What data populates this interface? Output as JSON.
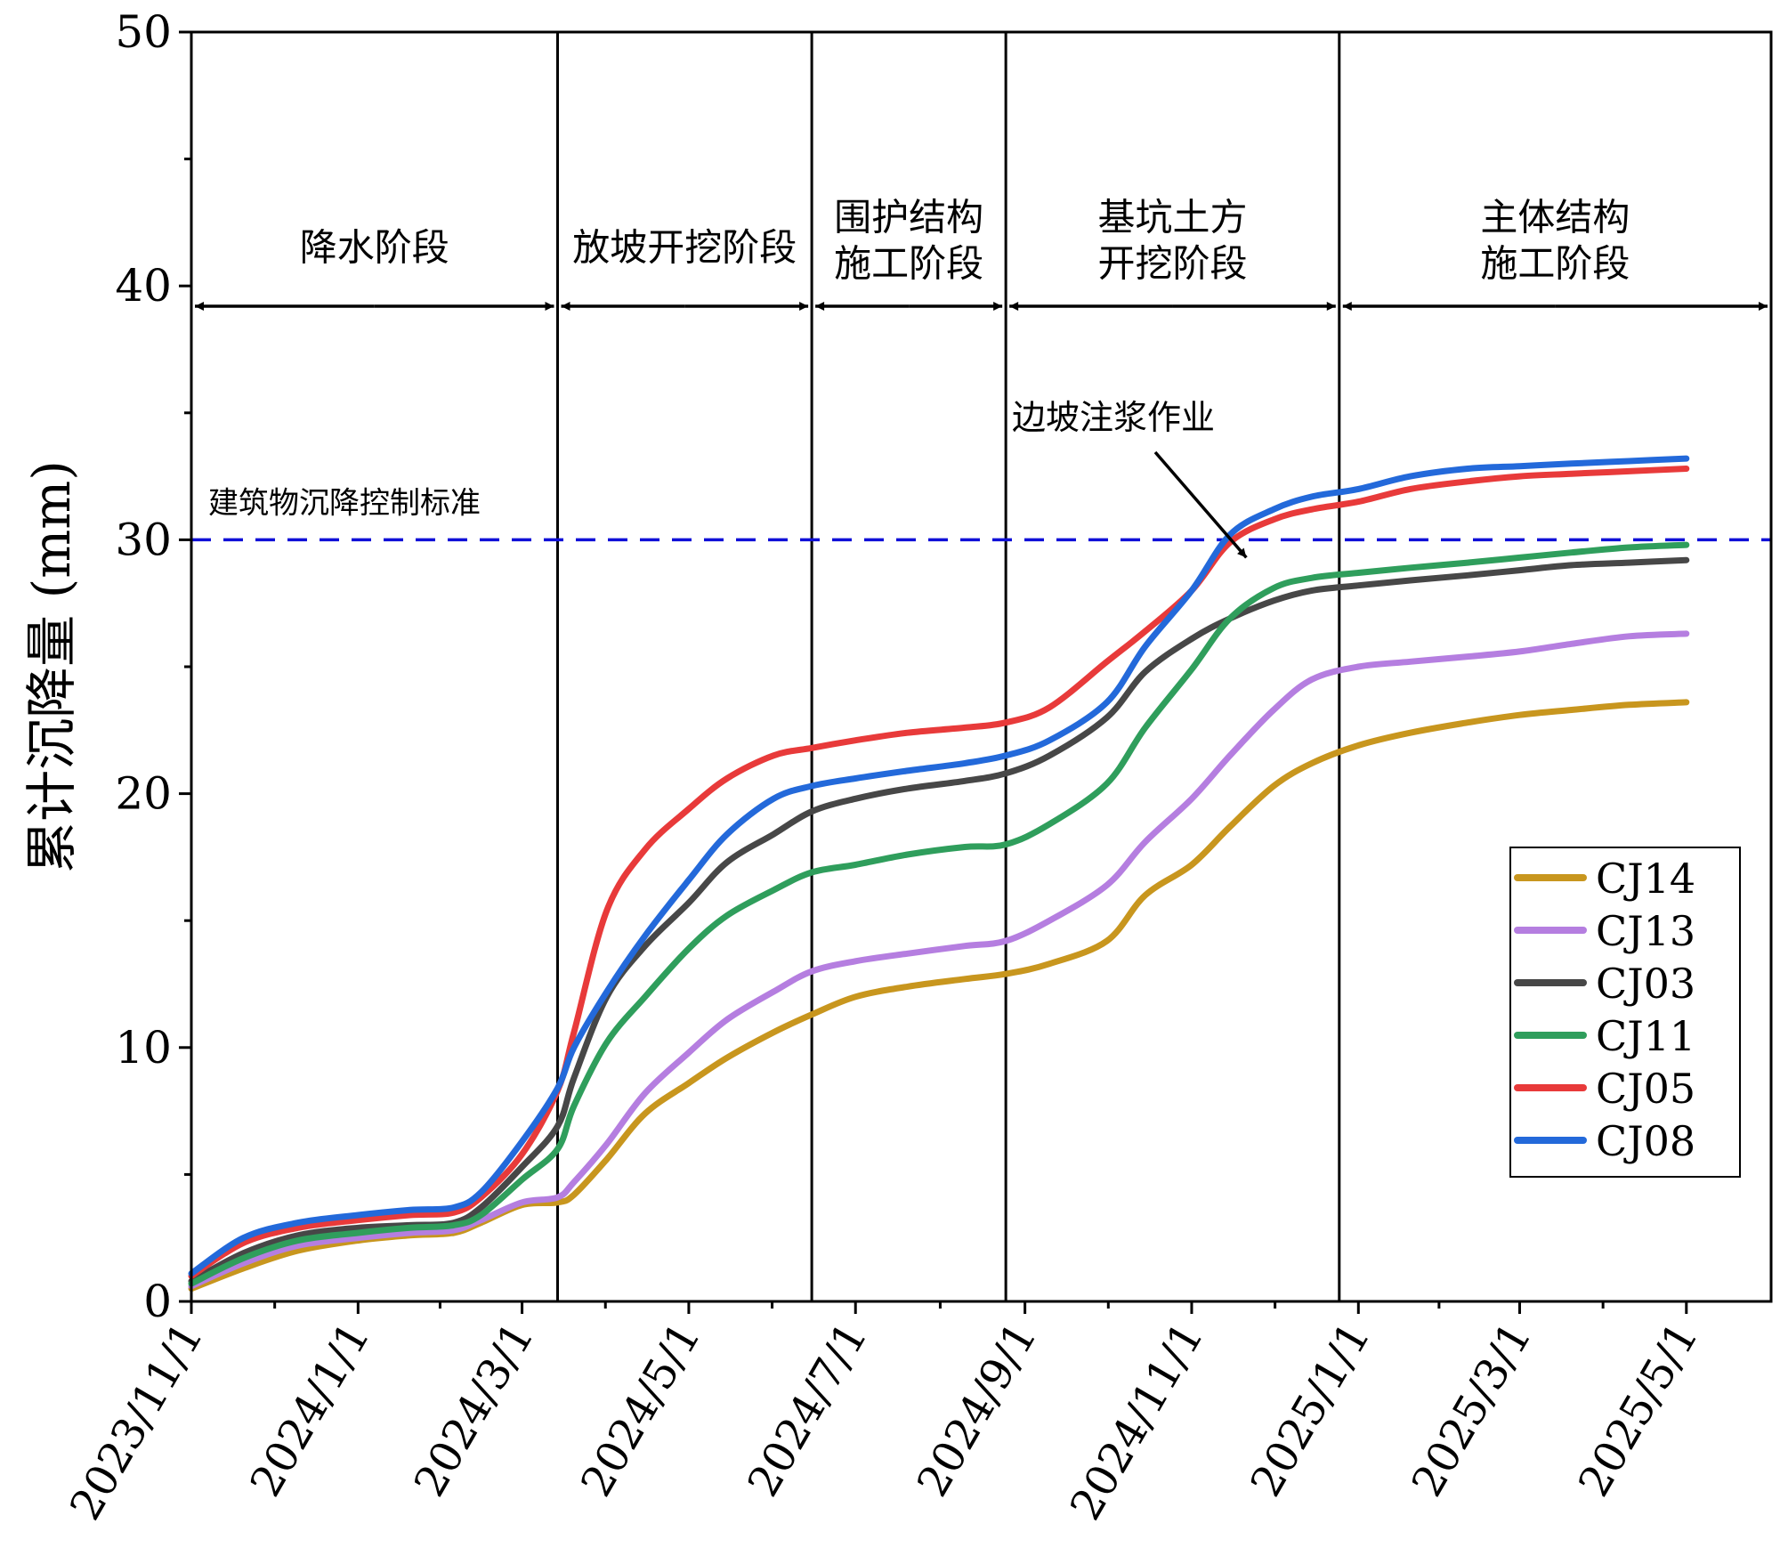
{
  "chart_data": {
    "type": "line",
    "title": "",
    "ylabel": "累计沉降量 (mm)",
    "xlabel": "",
    "ylim": [
      0,
      50
    ],
    "yticks": [
      0,
      10,
      20,
      30,
      40,
      50
    ],
    "xlim": [
      "2023/11/1",
      "2025/6/1"
    ],
    "xticks": [
      "2023/11/1",
      "2024/1/1",
      "2024/3/1",
      "2024/5/1",
      "2024/7/1",
      "2024/9/1",
      "2024/11/1",
      "2025/1/1",
      "2025/3/1",
      "2025/5/1"
    ],
    "grid": false,
    "legend": "bottom-right",
    "threshold": {
      "value": 30,
      "label": "建筑物沉降控制标准",
      "color": "#1010d8"
    },
    "phases": [
      {
        "label": [
          "降水阶段"
        ],
        "start": "2023/11/1",
        "end": "2024/3/14"
      },
      {
        "label": [
          "放坡开挖阶段"
        ],
        "start": "2024/3/14",
        "end": "2024/6/15"
      },
      {
        "label": [
          "围护结构",
          "施工阶段"
        ],
        "start": "2024/6/15",
        "end": "2024/8/25"
      },
      {
        "label": [
          "基坑土方",
          "开挖阶段"
        ],
        "start": "2024/8/25",
        "end": "2024/12/25"
      },
      {
        "label": [
          "主体结构",
          "施工阶段"
        ],
        "start": "2024/12/25",
        "end": "2025/6/1"
      }
    ],
    "annotation": {
      "text": "边坡注浆作业",
      "target_date": "2024/11/21",
      "target_value": 29.3
    },
    "x": [
      "2023/11/1",
      "2023/11/20",
      "2023/12/10",
      "2024/1/1",
      "2024/1/20",
      "2024/2/5",
      "2024/2/15",
      "2024/3/1",
      "2024/3/14",
      "2024/3/20",
      "2024/4/1",
      "2024/4/15",
      "2024/5/1",
      "2024/5/15",
      "2024/6/1",
      "2024/6/15",
      "2024/7/1",
      "2024/7/20",
      "2024/8/10",
      "2024/8/25",
      "2024/9/10",
      "2024/10/1",
      "2024/10/15",
      "2024/11/1",
      "2024/11/15",
      "2024/12/1",
      "2024/12/15",
      "2025/1/1",
      "2025/1/20",
      "2025/2/10",
      "2025/3/1",
      "2025/3/20",
      "2025/4/10",
      "2025/5/1"
    ],
    "series": [
      {
        "name": "CJ14",
        "color": "#c8961e",
        "values": [
          0.5,
          1.3,
          2.0,
          2.4,
          2.6,
          2.7,
          3.1,
          3.8,
          3.9,
          4.2,
          5.6,
          7.4,
          8.6,
          9.6,
          10.6,
          11.3,
          12.0,
          12.4,
          12.7,
          12.9,
          13.3,
          14.2,
          16.0,
          17.2,
          18.7,
          20.3,
          21.2,
          21.9,
          22.4,
          22.8,
          23.1,
          23.3,
          23.5,
          23.6
        ]
      },
      {
        "name": "CJ13",
        "color": "#b57ee0",
        "values": [
          0.6,
          1.5,
          2.2,
          2.5,
          2.7,
          2.8,
          3.2,
          3.9,
          4.1,
          4.7,
          6.2,
          8.2,
          9.8,
          11.1,
          12.2,
          13.0,
          13.4,
          13.7,
          14.0,
          14.2,
          15.0,
          16.4,
          18.1,
          19.8,
          21.5,
          23.3,
          24.5,
          25.0,
          25.2,
          25.4,
          25.6,
          25.9,
          26.2,
          26.3
        ]
      },
      {
        "name": "CJ03",
        "color": "#474747",
        "values": [
          0.8,
          1.9,
          2.6,
          2.9,
          3.0,
          3.1,
          3.7,
          5.3,
          6.9,
          8.8,
          12.0,
          14.0,
          15.7,
          17.3,
          18.4,
          19.3,
          19.8,
          20.2,
          20.5,
          20.8,
          21.5,
          23.0,
          24.8,
          26.1,
          26.9,
          27.6,
          28.0,
          28.2,
          28.4,
          28.6,
          28.8,
          29.0,
          29.1,
          29.2
        ]
      },
      {
        "name": "CJ11",
        "color": "#2f9e5c",
        "values": [
          0.7,
          1.7,
          2.4,
          2.7,
          2.9,
          3.0,
          3.4,
          4.8,
          6.0,
          7.7,
          10.2,
          12.0,
          13.9,
          15.2,
          16.2,
          16.9,
          17.2,
          17.6,
          17.9,
          18.0,
          18.8,
          20.4,
          22.6,
          24.9,
          26.9,
          28.1,
          28.5,
          28.7,
          28.9,
          29.1,
          29.3,
          29.5,
          29.7,
          29.8
        ]
      },
      {
        "name": "CJ05",
        "color": "#e83a3a",
        "values": [
          1.0,
          2.3,
          2.9,
          3.2,
          3.4,
          3.5,
          4.1,
          5.8,
          8.3,
          10.6,
          15.4,
          17.8,
          19.4,
          20.6,
          21.5,
          21.8,
          22.1,
          22.4,
          22.6,
          22.8,
          23.4,
          25.2,
          26.4,
          28.0,
          29.9,
          30.8,
          31.2,
          31.5,
          32.0,
          32.3,
          32.5,
          32.6,
          32.7,
          32.8
        ]
      },
      {
        "name": "CJ08",
        "color": "#2369da",
        "values": [
          1.1,
          2.5,
          3.1,
          3.4,
          3.6,
          3.7,
          4.3,
          6.3,
          8.4,
          10.0,
          12.2,
          14.4,
          16.6,
          18.4,
          19.8,
          20.3,
          20.6,
          20.9,
          21.2,
          21.5,
          22.1,
          23.6,
          25.8,
          28.0,
          30.2,
          31.2,
          31.7,
          32.0,
          32.5,
          32.8,
          32.9,
          33.0,
          33.1,
          33.2
        ]
      }
    ]
  }
}
